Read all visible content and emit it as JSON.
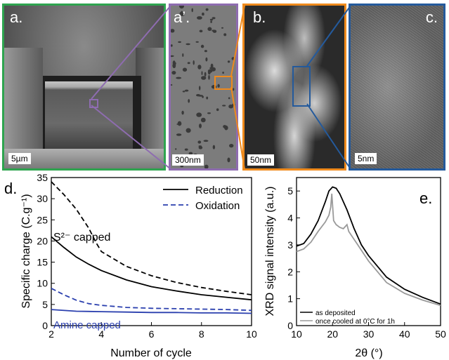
{
  "panels": {
    "a": {
      "label": "a.",
      "scale": "5µm",
      "border": "#2ea44f"
    },
    "a2": {
      "label": "a’.",
      "scale": "300nm",
      "border": "#8e6cb0"
    },
    "b": {
      "label": "b.",
      "scale": "50nm",
      "border": "#ef8a1c"
    },
    "c": {
      "label": "c.",
      "scale": "5nm",
      "border": "#245a9c"
    }
  },
  "chart_data": [
    {
      "panel_label": "d.",
      "type": "line",
      "xlabel": "Number of cycle",
      "ylabel": "Specific charge (C.g⁻¹)",
      "xlim": [
        2,
        10
      ],
      "ylim": [
        0,
        35
      ],
      "xticks": [
        2,
        4,
        6,
        8,
        10
      ],
      "yticks": [
        0,
        5,
        10,
        15,
        20,
        25,
        30,
        35
      ],
      "legend": {
        "position": "top-right",
        "entries": [
          "Reduction",
          "Oxidation"
        ]
      },
      "annotations": [
        {
          "text": "S²⁻ capped",
          "color": "#000000"
        },
        {
          "text": "Amine capped",
          "color": "#2a3fae"
        }
      ],
      "series": [
        {
          "name": "Reduction",
          "group": "S²⁻ capped",
          "style": "solid",
          "color": "#000000",
          "x": [
            2,
            2.5,
            3,
            3.5,
            4,
            5,
            6,
            7,
            8,
            9,
            10
          ],
          "y": [
            21,
            18.5,
            16.2,
            14.5,
            13,
            10.8,
            9.2,
            8.2,
            7.3,
            6.7,
            6.1
          ]
        },
        {
          "name": "Oxidation",
          "group": "S²⁻ capped",
          "style": "dashed",
          "color": "#000000",
          "x": [
            2,
            2.5,
            3,
            3.5,
            3.8,
            4,
            5,
            6,
            7,
            8,
            9,
            10
          ],
          "y": [
            34,
            31,
            27.5,
            23,
            19.5,
            17.5,
            14,
            11.8,
            10.2,
            9,
            8.1,
            7.3
          ]
        },
        {
          "name": "Reduction",
          "group": "Amine capped",
          "style": "solid",
          "color": "#2a3fae",
          "x": [
            2,
            3,
            4,
            5,
            6,
            7,
            8,
            9,
            10
          ],
          "y": [
            3.8,
            3.4,
            3.3,
            3.2,
            3.1,
            3.1,
            3.0,
            3.0,
            2.9
          ]
        },
        {
          "name": "Oxidation",
          "group": "Amine capped",
          "style": "dashed",
          "color": "#2a3fae",
          "x": [
            2,
            2.5,
            3,
            3.5,
            4,
            5,
            6,
            7,
            8,
            9,
            10
          ],
          "y": [
            8.8,
            7.3,
            6,
            5.2,
            4.8,
            4.3,
            4.1,
            4.0,
            3.9,
            3.8,
            3.6
          ]
        }
      ]
    },
    {
      "panel_label": "e.",
      "type": "line",
      "xlabel": "2θ (°)",
      "ylabel": "XRD signal intensity (a.u.)",
      "xlim": [
        10,
        50
      ],
      "ylim": [
        0,
        5.5
      ],
      "xticks": [
        10,
        20,
        30,
        40,
        50
      ],
      "yticks": [
        0,
        1,
        2,
        3,
        4,
        5
      ],
      "legend": {
        "position": "bottom-left",
        "entries": [
          "as deposited",
          "once cooled at 0°C for 1h"
        ]
      },
      "series": [
        {
          "name": "as deposited",
          "color": "#000000",
          "x": [
            10,
            12,
            14,
            16,
            18,
            19,
            20,
            21,
            22,
            24,
            26,
            28,
            30,
            35,
            40,
            45,
            50
          ],
          "y": [
            2.95,
            3.05,
            3.4,
            3.9,
            4.6,
            5.0,
            5.15,
            5.1,
            4.9,
            4.3,
            3.6,
            3.0,
            2.6,
            1.8,
            1.35,
            1.05,
            0.8
          ]
        },
        {
          "name": "once cooled at 0°C for 1h",
          "color": "#9a9a9a",
          "x": [
            10,
            12,
            14,
            16,
            18,
            19,
            19.5,
            19.8,
            20.3,
            21,
            22,
            23,
            24,
            24.5,
            26,
            28,
            30,
            35,
            40,
            45,
            50
          ],
          "y": [
            2.75,
            2.85,
            3.1,
            3.5,
            3.85,
            4.1,
            4.4,
            4.9,
            3.9,
            3.75,
            3.65,
            3.6,
            3.75,
            3.5,
            3.2,
            2.8,
            2.4,
            1.6,
            1.2,
            0.95,
            0.75
          ]
        }
      ]
    }
  ]
}
